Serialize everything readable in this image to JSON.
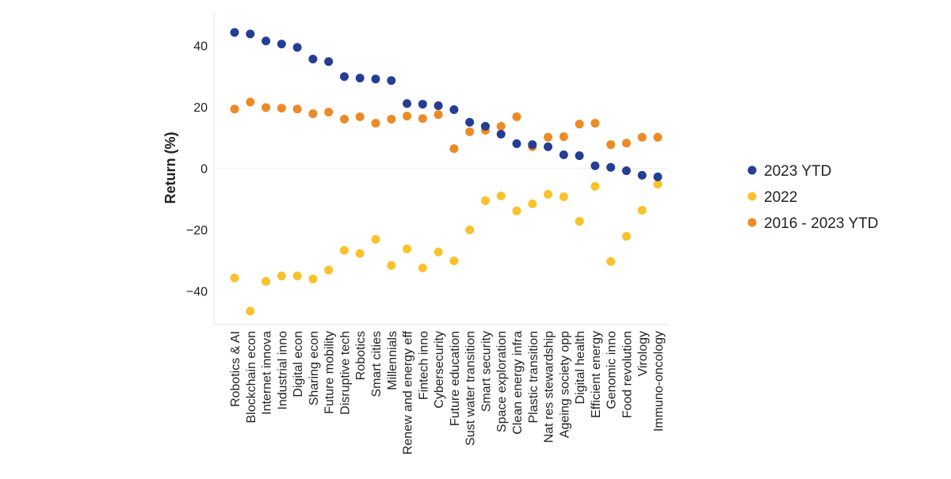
{
  "chart_data": {
    "type": "scatter",
    "title": "",
    "xlabel": "",
    "ylabel": "Return (%)",
    "ylim": [
      -51,
      51
    ],
    "yticks": [
      40,
      20,
      0,
      -20,
      -40
    ],
    "ytick_labels": [
      "40",
      "20",
      "0",
      "−20",
      "−40"
    ],
    "grid": false,
    "legend_position": "right",
    "categories": [
      "Robotics & AI",
      "Blockchain econ",
      "Internet innova",
      "Industrial inno",
      "Digital econ",
      "Sharing econ",
      "Future mobility",
      "Disruptive tech",
      "Robotics",
      "Smart cities",
      "Millennials",
      "Renew and energy eff",
      "Fintech inno",
      "Cybersecurity",
      "Future education",
      "Sust water transition",
      "Smart security",
      "Space exploration",
      "Clean energy infra",
      "Plastic transition",
      "Nat res stewardship",
      "Ageing society opp",
      "Digital health",
      "Efficient energy",
      "Genomic inno",
      "Food revolution",
      "Virology",
      "Immuno-oncology"
    ],
    "series": [
      {
        "name": "2023 YTD",
        "color": "#233E94",
        "values": [
          44.3,
          43.8,
          41.5,
          40.5,
          39.4,
          35.6,
          34.8,
          29.9,
          29.4,
          29.1,
          28.6,
          21.1,
          20.9,
          20.4,
          19.1,
          15.0,
          13.7,
          11.1,
          8.0,
          7.7,
          7.0,
          4.4,
          4.1,
          0.8,
          0.3,
          -0.8,
          -2.3,
          -2.8
        ]
      },
      {
        "name": "2022",
        "color": "#F9C22B",
        "values": [
          -35.8,
          -46.6,
          -36.9,
          -35.1,
          -35.1,
          -36.1,
          -33.2,
          -26.8,
          -27.8,
          -23.2,
          -31.7,
          -26.3,
          -32.5,
          -27.3,
          -30.2,
          -20.1,
          -10.6,
          -9.0,
          -13.9,
          -11.6,
          -8.5,
          -9.3,
          -17.3,
          -5.9,
          -30.4,
          -22.2,
          -13.7,
          -5.2
        ]
      },
      {
        "name": "2016 - 2023 YTD",
        "color": "#EE8A26",
        "values": [
          19.3,
          21.6,
          19.8,
          19.6,
          19.3,
          17.8,
          18.3,
          16.0,
          16.8,
          14.7,
          16.0,
          17.0,
          16.2,
          17.5,
          6.4,
          11.9,
          12.4,
          13.7,
          16.8,
          7.0,
          10.1,
          10.3,
          14.4,
          14.7,
          7.7,
          8.2,
          10.1,
          10.1
        ]
      }
    ]
  }
}
